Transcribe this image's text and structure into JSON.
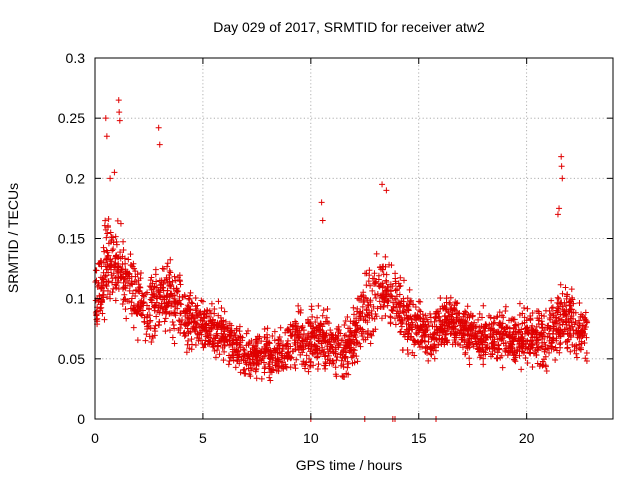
{
  "colors": {
    "series": "#e00000",
    "grid": "#a0a0a0",
    "axes": "#000000"
  },
  "chart_data": {
    "type": "scatter",
    "title": "Day 029 of 2017, SRMTID for receiver atw2",
    "xlabel": "GPS time / hours",
    "ylabel": "SRMTID / TECUs",
    "xlim": [
      0,
      24
    ],
    "ylim": [
      0,
      0.3
    ],
    "xticks": [
      0,
      5,
      10,
      15,
      20
    ],
    "xtick_labels": [
      "0",
      "5",
      "10",
      "15",
      "20"
    ],
    "yticks": [
      0,
      0.05,
      0.1,
      0.15,
      0.2,
      0.25,
      0.3
    ],
    "ytick_labels": [
      "0",
      "0.05",
      "0.1",
      "0.15",
      "0.2",
      "0.25",
      "0.3"
    ],
    "grid": true,
    "marker": "+",
    "series": [
      {
        "name": "SRMTID",
        "envelope_note": "dense scatter summarized by hourly ranges",
        "x": [
          0.0,
          0.3,
          0.5,
          0.8,
          1.0,
          1.5,
          2.0,
          2.5,
          3.0,
          3.5,
          4.0,
          4.5,
          5.0,
          5.5,
          6.0,
          6.5,
          7.0,
          7.5,
          8.0,
          8.5,
          9.0,
          9.5,
          10.0,
          10.5,
          11.0,
          11.5,
          12.0,
          12.5,
          13.0,
          13.5,
          14.0,
          14.5,
          15.0,
          15.5,
          16.0,
          16.5,
          17.0,
          17.5,
          18.0,
          18.5,
          19.0,
          19.5,
          20.0,
          20.5,
          21.0,
          21.5,
          22.0,
          22.5
        ],
        "center": [
          0.09,
          0.11,
          0.13,
          0.12,
          0.13,
          0.11,
          0.1,
          0.09,
          0.1,
          0.1,
          0.09,
          0.08,
          0.08,
          0.075,
          0.07,
          0.06,
          0.05,
          0.055,
          0.055,
          0.055,
          0.06,
          0.07,
          0.065,
          0.07,
          0.06,
          0.055,
          0.07,
          0.09,
          0.1,
          0.11,
          0.095,
          0.08,
          0.075,
          0.07,
          0.075,
          0.08,
          0.075,
          0.07,
          0.07,
          0.065,
          0.07,
          0.065,
          0.07,
          0.065,
          0.07,
          0.08,
          0.085,
          0.07
        ],
        "spread": [
          0.035,
          0.045,
          0.05,
          0.05,
          0.05,
          0.045,
          0.04,
          0.04,
          0.045,
          0.04,
          0.035,
          0.03,
          0.03,
          0.03,
          0.03,
          0.025,
          0.025,
          0.025,
          0.025,
          0.025,
          0.03,
          0.035,
          0.035,
          0.035,
          0.03,
          0.03,
          0.035,
          0.04,
          0.045,
          0.045,
          0.04,
          0.035,
          0.03,
          0.03,
          0.03,
          0.03,
          0.03,
          0.03,
          0.03,
          0.03,
          0.035,
          0.03,
          0.035,
          0.035,
          0.035,
          0.04,
          0.04,
          0.03
        ],
        "outliers_x": [
          0.5,
          0.55,
          1.1,
          1.12,
          1.15,
          2.95,
          3.0,
          10.5,
          10.55,
          13.3,
          13.5,
          21.6,
          21.62,
          21.65,
          21.5,
          21.45,
          0.9,
          0.7
        ],
        "outliers_y": [
          0.25,
          0.235,
          0.265,
          0.255,
          0.248,
          0.242,
          0.228,
          0.18,
          0.165,
          0.195,
          0.19,
          0.218,
          0.21,
          0.2,
          0.175,
          0.17,
          0.205,
          0.2
        ],
        "zeros_x": [
          10.0,
          12.5,
          13.8,
          13.9,
          15.8
        ]
      }
    ]
  }
}
